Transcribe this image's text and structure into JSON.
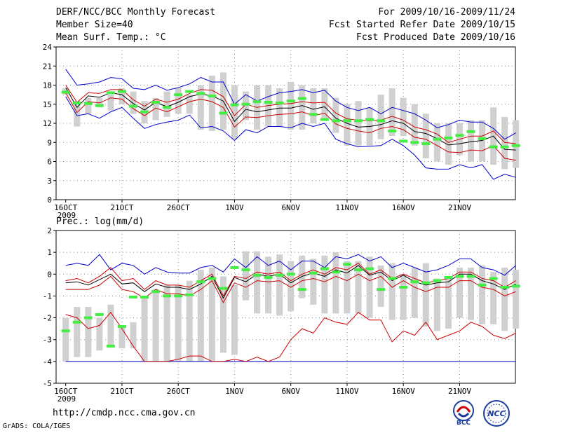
{
  "header": {
    "title": "DERF/NCC/BCC Monthly Forecast",
    "member": "Member Size=40",
    "variable": "Mean Surf. Temp.: °C",
    "period": "For 2009/10/16-2009/11/24",
    "refer": "Fcst Started Refer Date 2009/10/15",
    "produced": "Fcst Produced Date 2009/10/16"
  },
  "footer": {
    "url": "http://cmdp.ncc.cma.gov.cn",
    "grads": "GrADS: COLA/IGES",
    "logo_bcc": "BCC",
    "logo_ncc": "NCC"
  },
  "colors": {
    "max_min": "#0000cc",
    "spread": "#cc0000",
    "mean": "#000000",
    "obs": "#44ee44",
    "box": "#d0d0d0"
  },
  "chart_data": [
    {
      "type": "line",
      "title": "Mean Surf. Temp.: °C",
      "ylim": [
        0,
        24
      ],
      "yticks": [
        0,
        3,
        6,
        9,
        12,
        15,
        18,
        21,
        24
      ],
      "x": {
        "days": 40,
        "tick_days": [
          1,
          6,
          11,
          16,
          21,
          26,
          31,
          36
        ],
        "tick_labels": [
          "16OCT",
          "21OCT",
          "26OCT",
          "1NOV",
          "6NOV",
          "11NOV",
          "16NOV",
          "21NOV"
        ],
        "year": "2009"
      },
      "series": [
        {
          "name": "Max",
          "values": [
            20.5,
            18,
            18.2,
            18.5,
            19.2,
            19,
            17.5,
            17.3,
            18,
            17.2,
            17.6,
            18.2,
            19.2,
            18.5,
            18.5,
            15,
            16.5,
            15.5,
            16.2,
            16.8,
            17,
            17.3,
            16.8,
            17.2,
            15.5,
            14.5,
            14,
            14.5,
            13.5,
            14.5,
            14,
            13.5,
            12.5,
            11.3,
            11.8,
            12.5,
            12.2,
            12.2,
            11.2,
            9.5,
            10.5
          ]
        },
        {
          "name": "Upper",
          "values": [
            18,
            15.3,
            16.8,
            16.7,
            17.3,
            17.3,
            15.7,
            14.7,
            15.8,
            15.3,
            15.8,
            16.7,
            17.3,
            17.2,
            16.2,
            13.2,
            15,
            14.5,
            14.8,
            15,
            15.1,
            15.4,
            15.2,
            15.3,
            13.6,
            12.7,
            12.5,
            12.4,
            12.5,
            13.1,
            12.5,
            11.4,
            11,
            10.3,
            9,
            9.5,
            10,
            10,
            10.8,
            9,
            8.8
          ]
        },
        {
          "name": "Mean",
          "values": [
            17.6,
            14.5,
            16.3,
            16.1,
            16.8,
            16.5,
            15.1,
            14.1,
            15.3,
            14.6,
            15.3,
            16.2,
            16.6,
            16.3,
            15.5,
            12.3,
            14.2,
            13.8,
            14.1,
            14.4,
            14.4,
            14.8,
            14.2,
            14.6,
            12.8,
            12,
            11.4,
            11.5,
            11.8,
            12.4,
            12,
            10.7,
            10.4,
            9.6,
            8.6,
            8.8,
            9.1,
            9.3,
            10,
            7.9,
            7.8
          ]
        },
        {
          "name": "Lower",
          "values": [
            16.8,
            13.7,
            15.4,
            15.2,
            16,
            15.8,
            14.3,
            13.2,
            14.4,
            13.8,
            14.6,
            15.4,
            15.8,
            15.4,
            14.5,
            11.4,
            13,
            12.9,
            13.2,
            13.4,
            13.5,
            13.8,
            13.2,
            13.6,
            11.9,
            11.2,
            10.8,
            10.5,
            11.2,
            11.5,
            11,
            9.8,
            9.5,
            8.5,
            7.5,
            7.4,
            7.8,
            7.7,
            8.5,
            6.5,
            6.2
          ]
        },
        {
          "name": "Min",
          "values": [
            16.2,
            13.2,
            13.5,
            12.8,
            13.8,
            14.5,
            12.8,
            11.2,
            11.8,
            12.2,
            12.5,
            13.3,
            11.3,
            11.5,
            10.8,
            9.3,
            11,
            10.5,
            11.5,
            11.5,
            11.3,
            12,
            11.5,
            12,
            9.5,
            8.8,
            8.3,
            8.4,
            8.5,
            9.5,
            8.5,
            7,
            5,
            4.8,
            4.8,
            5.5,
            5,
            5.5,
            3.2,
            4,
            3.5
          ]
        },
        {
          "name": "BoxTop",
          "values": [
            17.5,
            15.5,
            16,
            16,
            16.5,
            17.5,
            17,
            15.5,
            16,
            17,
            17.5,
            16.5,
            18,
            19.5,
            20,
            18,
            17,
            18,
            18,
            17.5,
            18.5,
            18,
            17.5,
            17.5,
            16,
            15,
            15.5,
            14.5,
            16.5,
            17.5,
            16,
            15,
            13.5,
            12,
            12,
            12,
            12.5,
            12.5,
            14.5,
            13,
            12.5
          ]
        },
        {
          "name": "BoxBottom",
          "values": [
            16.5,
            11.5,
            13.5,
            14.5,
            14,
            15,
            13.5,
            12,
            12.5,
            13,
            13.5,
            13.5,
            11,
            10.8,
            11,
            9.5,
            12.5,
            11,
            11.5,
            11.5,
            11,
            11,
            12,
            12.5,
            10.5,
            8.5,
            8.5,
            8.5,
            9.5,
            10,
            10,
            8.5,
            6.5,
            6,
            5.5,
            7,
            6,
            6,
            5.5,
            4.8,
            5
          ]
        },
        {
          "name": "Observed",
          "values": [
            16.9,
            15.2,
            15.1,
            14.8,
            16.8,
            17.0,
            14.7,
            13.8,
            15.3,
            14.5,
            16.5,
            17.0,
            16.7,
            16.3,
            13.6,
            14.9,
            15.0,
            15.4,
            15.3,
            15.2,
            15.5,
            15.9,
            13.4,
            12.6,
            12.4,
            12.4,
            12.4,
            12.6,
            12.4,
            10.8,
            9.2,
            9.0,
            8.8,
            9.5,
            9.7,
            10.1,
            10.7,
            9.6,
            8.3,
            8.3,
            8.5
          ]
        }
      ]
    },
    {
      "type": "line",
      "title": "Prec.: log(mm/d)",
      "ylim": [
        -5,
        2
      ],
      "yticks": [
        -5,
        -4,
        -3,
        -2,
        -1,
        0,
        1,
        2
      ],
      "x": {
        "days": 40,
        "tick_days": [
          1,
          6,
          11,
          16,
          21,
          26,
          31,
          36
        ],
        "tick_labels": [
          "16OCT",
          "21OCT",
          "26OCT",
          "1NOV",
          "6NOV",
          "11NOV",
          "16NOV",
          "21NOV"
        ],
        "year": "2009"
      },
      "series": [
        {
          "name": "Max",
          "values": [
            0.4,
            0.5,
            0.4,
            0.9,
            0.2,
            0.5,
            0.4,
            0,
            0.3,
            0.1,
            0.05,
            0.05,
            0.3,
            0.4,
            0.1,
            0.7,
            0.3,
            0.8,
            0.4,
            0.6,
            0.2,
            0.6,
            0.6,
            0.3,
            0.8,
            0.7,
            0.9,
            0.6,
            0.8,
            0.3,
            0.5,
            0.3,
            0.1,
            0.2,
            0.4,
            0.7,
            0.7,
            0.3,
            0.2,
            -0.05,
            0.4
          ]
        },
        {
          "name": "Upper",
          "values": [
            -0.3,
            -0.2,
            -0.4,
            -0.1,
            0.3,
            -0.3,
            -0.2,
            -0.7,
            -0.3,
            -0.5,
            -0.5,
            -0.6,
            -0.3,
            0,
            -1,
            -0.1,
            -0.2,
            0.1,
            0,
            0.1,
            -0.3,
            0,
            0.2,
            0,
            0.3,
            0.2,
            0.5,
            0,
            0.2,
            -0.2,
            0,
            -0.2,
            -0.4,
            -0.3,
            -0.2,
            0.1,
            0.1,
            -0.2,
            -0.3,
            -0.6,
            -0.3
          ]
        },
        {
          "name": "Mean",
          "values": [
            -0.4,
            -0.35,
            -0.5,
            -0.25,
            0,
            -0.45,
            -0.4,
            -0.8,
            -0.45,
            -0.6,
            -0.6,
            -0.7,
            -0.45,
            -0.1,
            -1.1,
            -0.15,
            -0.35,
            0,
            -0.1,
            0,
            -0.4,
            -0.1,
            0.05,
            -0.1,
            0.2,
            0.05,
            0.4,
            -0.05,
            0.1,
            -0.3,
            -0.05,
            -0.35,
            -0.5,
            -0.4,
            -0.35,
            0,
            0,
            -0.3,
            -0.45,
            -0.7,
            -0.45
          ]
        },
        {
          "name": "Lower",
          "values": [
            -0.7,
            -0.7,
            -0.7,
            -0.5,
            -0.1,
            -0.7,
            -0.8,
            -1.1,
            -0.7,
            -0.9,
            -0.9,
            -1,
            -0.7,
            -0.3,
            -1.3,
            -0.4,
            -0.6,
            -0.3,
            -0.35,
            -0.3,
            -0.6,
            -0.3,
            -0.2,
            -0.35,
            -0.1,
            -0.3,
            0,
            -0.3,
            -0.1,
            -0.6,
            -0.3,
            -0.6,
            -0.8,
            -0.6,
            -0.6,
            -0.3,
            -0.3,
            -0.6,
            -0.7,
            -1,
            -0.8
          ]
        },
        {
          "name": "LowSpread",
          "values": [
            -1.85,
            -2,
            -2.5,
            -2.35,
            -1.75,
            -2.5,
            -3.3,
            -4,
            -4,
            -4,
            -3.9,
            -3.75,
            -3.75,
            -4,
            -4,
            -3.9,
            -4,
            -3.8,
            -4,
            -3.8,
            -3,
            -2.5,
            -2.7,
            -2,
            -2.2,
            -2.3,
            -1.75,
            -2.1,
            -2.1,
            -3.1,
            -2.6,
            -2.8,
            -2.2,
            -3,
            -2.8,
            -2.6,
            -2.2,
            -2.4,
            -2.8,
            -2.95,
            -2.7
          ]
        },
        {
          "name": "Min",
          "values": [
            -4,
            -4,
            -4,
            -4,
            -4,
            -4,
            -4,
            -4,
            -4,
            -4,
            -4,
            -4,
            -4,
            -4,
            -4,
            -4,
            -4,
            -4,
            -4,
            -4,
            -4,
            -4,
            -4,
            -4,
            -4,
            -4,
            -4,
            -4,
            -4,
            -4,
            -4,
            -4,
            -4,
            -4,
            -4,
            -4,
            -4,
            -4,
            -4,
            -4,
            -4
          ]
        },
        {
          "name": "BoxTop",
          "values": [
            -2,
            -1.5,
            -1.5,
            -2,
            -1.4,
            -2.4,
            -2.2,
            -1.1,
            -0.7,
            -0.5,
            -0.5,
            -0.3,
            0.2,
            0.3,
            -0.1,
            -0.5,
            1.05,
            1.05,
            0.8,
            0.9,
            0.6,
            0.85,
            0.7,
            0.85,
            1,
            0.6,
            0.6,
            0.8,
            0.4,
            0.5,
            0,
            0.3,
            0.5,
            -0.2,
            -0.1,
            0.3,
            0.3,
            0.4,
            0.1,
            0.3,
            0.2
          ]
        },
        {
          "name": "BoxBottom",
          "values": [
            -4,
            -3.8,
            -3.8,
            -3.5,
            -3.3,
            -3.4,
            -3.4,
            -4,
            -4,
            -4,
            -4,
            -4,
            -4,
            -4,
            -3.6,
            -3.7,
            -1.2,
            -1.8,
            -1.8,
            -1.9,
            -1.7,
            -1.1,
            -1.4,
            -1.8,
            -1.8,
            -1.8,
            -1.8,
            -2,
            -1.5,
            -2.1,
            -2.1,
            -2,
            -2.4,
            -2.6,
            -2.5,
            -2,
            -2.1,
            -2.3,
            -2.3,
            -2.6,
            -2.5
          ]
        },
        {
          "name": "Observed",
          "values": [
            -2.6,
            -2.2,
            -2.0,
            -1.85,
            -3.3,
            -2.4,
            -1.05,
            -1.05,
            -0.8,
            -1.0,
            -1.0,
            -0.95,
            -0.35,
            -0.2,
            -0.65,
            0.3,
            0.2,
            -0.05,
            -0.15,
            -0.05,
            0,
            -0.7,
            0.05,
            0.25,
            0.1,
            0.45,
            0.2,
            0.25,
            -0.7,
            -0.2,
            -0.6,
            -0.35,
            -0.4,
            -0.3,
            -0.15,
            -0.1,
            -0.1,
            -0.5,
            -0.2,
            -0.6,
            -0.55
          ]
        }
      ]
    }
  ]
}
